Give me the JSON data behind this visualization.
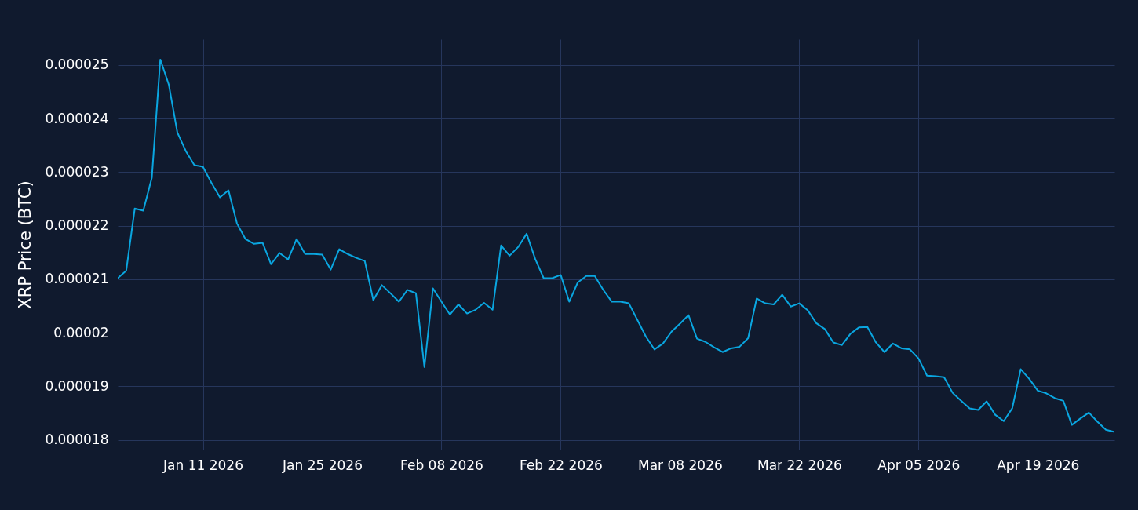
{
  "chart_data": {
    "type": "line",
    "ylabel": "XRP Price (BTC)",
    "xlim": [
      "2026-01-01",
      "2026-04-28"
    ],
    "ylim": [
      1.782e-05,
      2.548e-05
    ],
    "xticks": [
      {
        "value": "2026-01-11",
        "label": "Jan 11 2026"
      },
      {
        "value": "2026-01-25",
        "label": "Jan 25 2026"
      },
      {
        "value": "2026-02-08",
        "label": "Feb 08 2026"
      },
      {
        "value": "2026-02-22",
        "label": "Feb 22 2026"
      },
      {
        "value": "2026-03-08",
        "label": "Mar 08 2026"
      },
      {
        "value": "2026-03-22",
        "label": "Mar 22 2026"
      },
      {
        "value": "2026-04-05",
        "label": "Apr 05 2026"
      },
      {
        "value": "2026-04-19",
        "label": "Apr 19 2026"
      }
    ],
    "yticks": [
      {
        "value": 1.8e-05,
        "label": "0.000018"
      },
      {
        "value": 1.9e-05,
        "label": "0.000019"
      },
      {
        "value": 2e-05,
        "label": "0.00002"
      },
      {
        "value": 2.1e-05,
        "label": "0.000021"
      },
      {
        "value": 2.2e-05,
        "label": "0.000022"
      },
      {
        "value": 2.3e-05,
        "label": "0.000023"
      },
      {
        "value": 2.4e-05,
        "label": "0.000024"
      },
      {
        "value": 2.5e-05,
        "label": "0.000025"
      }
    ],
    "grid": true,
    "marker": "none",
    "line_style": "solid",
    "x": [
      "2026-01-01",
      "2026-01-02",
      "2026-01-03",
      "2026-01-04",
      "2026-01-05",
      "2026-01-06",
      "2026-01-07",
      "2026-01-08",
      "2026-01-09",
      "2026-01-10",
      "2026-01-11",
      "2026-01-12",
      "2026-01-13",
      "2026-01-14",
      "2026-01-15",
      "2026-01-16",
      "2026-01-17",
      "2026-01-18",
      "2026-01-19",
      "2026-01-20",
      "2026-01-21",
      "2026-01-22",
      "2026-01-23",
      "2026-01-24",
      "2026-01-25",
      "2026-01-26",
      "2026-01-27",
      "2026-01-28",
      "2026-01-29",
      "2026-01-30",
      "2026-01-31",
      "2026-02-01",
      "2026-02-02",
      "2026-02-03",
      "2026-02-04",
      "2026-02-05",
      "2026-02-06",
      "2026-02-07",
      "2026-02-08",
      "2026-02-09",
      "2026-02-10",
      "2026-02-11",
      "2026-02-12",
      "2026-02-13",
      "2026-02-14",
      "2026-02-15",
      "2026-02-16",
      "2026-02-17",
      "2026-02-18",
      "2026-02-19",
      "2026-02-20",
      "2026-02-21",
      "2026-02-22",
      "2026-02-23",
      "2026-02-24",
      "2026-02-25",
      "2026-02-26",
      "2026-02-27",
      "2026-02-28",
      "2026-03-01",
      "2026-03-02",
      "2026-03-03",
      "2026-03-04",
      "2026-03-05",
      "2026-03-06",
      "2026-03-07",
      "2026-03-08",
      "2026-03-09",
      "2026-03-10",
      "2026-03-11",
      "2026-03-12",
      "2026-03-13",
      "2026-03-14",
      "2026-03-15",
      "2026-03-16",
      "2026-03-17",
      "2026-03-18",
      "2026-03-19",
      "2026-03-20",
      "2026-03-21",
      "2026-03-22",
      "2026-03-23",
      "2026-03-24",
      "2026-03-25",
      "2026-03-26",
      "2026-03-27",
      "2026-03-28",
      "2026-03-29",
      "2026-03-30",
      "2026-03-31",
      "2026-04-01",
      "2026-04-02",
      "2026-04-03",
      "2026-04-04",
      "2026-04-05",
      "2026-04-06",
      "2026-04-07",
      "2026-04-08",
      "2026-04-09",
      "2026-04-10",
      "2026-04-11",
      "2026-04-12",
      "2026-04-13",
      "2026-04-14",
      "2026-04-15",
      "2026-04-16",
      "2026-04-17",
      "2026-04-18",
      "2026-04-19",
      "2026-04-20",
      "2026-04-21",
      "2026-04-22",
      "2026-04-23",
      "2026-04-24",
      "2026-04-25",
      "2026-04-26",
      "2026-04-27",
      "2026-04-28"
    ],
    "series": [
      {
        "color": "#0aa6e0",
        "values": [
          2.102e-05,
          2.116e-05,
          2.232e-05,
          2.228e-05,
          2.289e-05,
          2.51e-05,
          2.463e-05,
          2.374e-05,
          2.339e-05,
          2.313e-05,
          2.31e-05,
          2.28e-05,
          2.253e-05,
          2.266e-05,
          2.204e-05,
          2.175e-05,
          2.166e-05,
          2.168e-05,
          2.128e-05,
          2.149e-05,
          2.137e-05,
          2.175e-05,
          2.147e-05,
          2.147e-05,
          2.146e-05,
          2.118e-05,
          2.156e-05,
          2.147e-05,
          2.14e-05,
          2.134e-05,
          2.061e-05,
          2.089e-05,
          2.074e-05,
          2.058e-05,
          2.08e-05,
          2.074e-05,
          1.936e-05,
          2.083e-05,
          2.058e-05,
          2.034e-05,
          2.053e-05,
          2.036e-05,
          2.043e-05,
          2.056e-05,
          2.043e-05,
          2.163e-05,
          2.144e-05,
          2.16e-05,
          2.185e-05,
          2.138e-05,
          2.102e-05,
          2.102e-05,
          2.108e-05,
          2.058e-05,
          2.094e-05,
          2.106e-05,
          2.106e-05,
          2.08e-05,
          2.058e-05,
          2.058e-05,
          2.055e-05,
          2.024e-05,
          1.993e-05,
          1.969e-05,
          1.98e-05,
          2.002e-05,
          2.017e-05,
          2.033e-05,
          1.989e-05,
          1.983e-05,
          1.973e-05,
          1.964e-05,
          1.971e-05,
          1.974e-05,
          1.99e-05,
          2.064e-05,
          2.055e-05,
          2.053e-05,
          2.071e-05,
          2.049e-05,
          2.055e-05,
          2.042e-05,
          2.018e-05,
          2.007e-05,
          1.982e-05,
          1.977e-05,
          1.998e-05,
          2.01e-05,
          2.011e-05,
          1.982e-05,
          1.964e-05,
          1.98e-05,
          1.971e-05,
          1.969e-05,
          1.952e-05,
          1.92e-05,
          1.919e-05,
          1.917e-05,
          1.888e-05,
          1.873e-05,
          1.859e-05,
          1.856e-05,
          1.872e-05,
          1.847e-05,
          1.835e-05,
          1.859e-05,
          1.932e-05,
          1.914e-05,
          1.892e-05,
          1.887e-05,
          1.878e-05,
          1.873e-05,
          1.828e-05,
          1.84e-05,
          1.851e-05,
          1.834e-05,
          1.819e-05,
          1.815e-05
        ]
      }
    ]
  }
}
